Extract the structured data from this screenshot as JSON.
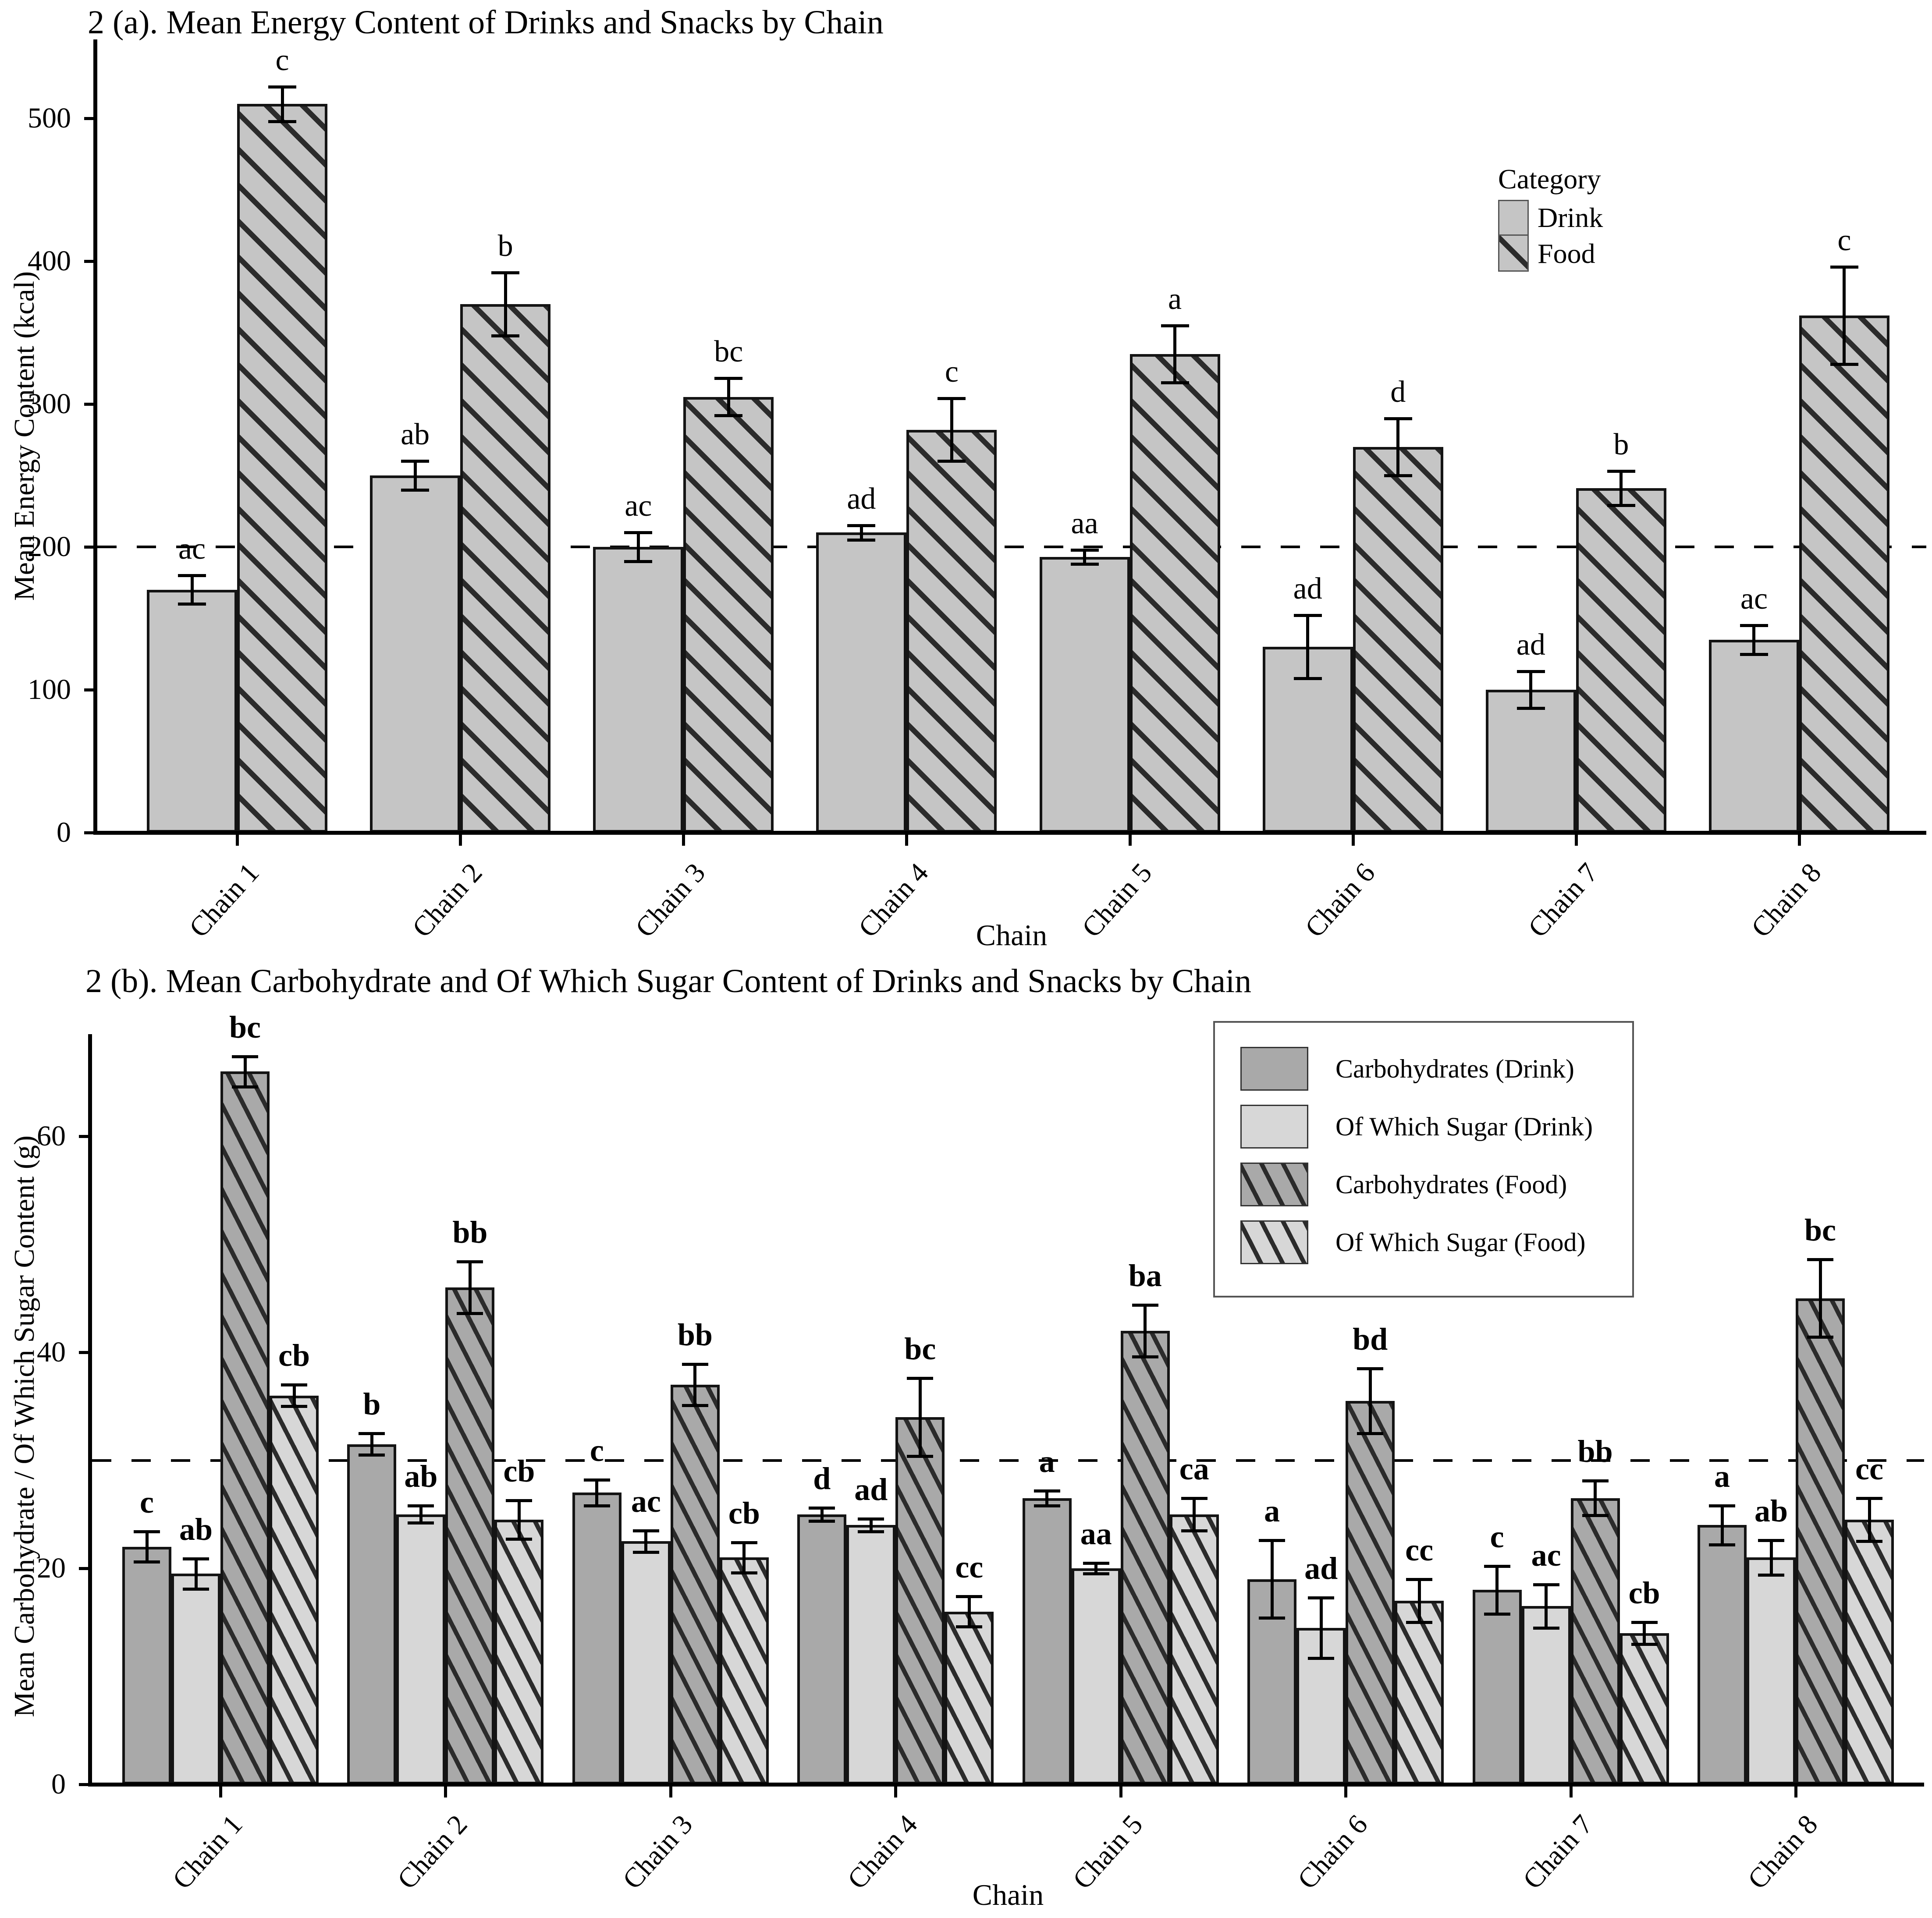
{
  "colors": {
    "background": "#ffffff",
    "bar_gray": "#c5c5c5",
    "bar_dark_gray": "#a9a9a9",
    "bar_light_gray": "#d7d7d7",
    "hatch_line": "#2b2b2b",
    "axis": "#000000"
  },
  "chart_data": [
    {
      "id": "a",
      "type": "bar",
      "title": "2 (a). Mean Energy Content of Drinks and Snacks by Chain",
      "xlabel": "Chain",
      "ylabel": "Mean Energy Content (kcal)",
      "categories": [
        "Chain 1",
        "Chain 2",
        "Chain 3",
        "Chain 4",
        "Chain 5",
        "Chain 6",
        "Chain 7",
        "Chain 8"
      ],
      "ytick_labels": [
        "0",
        "100",
        "200",
        "300",
        "400",
        "500"
      ],
      "ytick_values": [
        0,
        100,
        200,
        300,
        400,
        500
      ],
      "ylim": [
        0,
        555
      ],
      "grid": false,
      "refline_value": 200,
      "legend": {
        "position": "upper-right",
        "title": "Category",
        "entries": [
          {
            "label": "Drink",
            "style": "drink-a"
          },
          {
            "label": "Food",
            "style": "food-a"
          }
        ]
      },
      "series": [
        {
          "name": "Drink",
          "style": "drink-a",
          "values": [
            170,
            250,
            200,
            210,
            193,
            130,
            100,
            135
          ],
          "errors": [
            10,
            10,
            10,
            5,
            5,
            22,
            13,
            10
          ],
          "sig_labels": [
            "ac",
            "ab",
            "ac",
            "ad",
            "aa",
            "ad",
            "ad",
            "ac"
          ]
        },
        {
          "name": "Food",
          "style": "food-a",
          "values": [
            510,
            370,
            305,
            282,
            335,
            270,
            241,
            362
          ],
          "errors": [
            12,
            22,
            13,
            22,
            20,
            20,
            12,
            34
          ],
          "sig_labels": [
            "c",
            "b",
            "bc",
            "c",
            "a",
            "d",
            "b",
            "c"
          ]
        }
      ]
    },
    {
      "id": "b",
      "type": "bar",
      "title": "2 (b). Mean Carbohydrate and Of Which Sugar Content of Drinks and Snacks by Chain",
      "xlabel": "Chain",
      "ylabel": "Mean Carbohydrate / Of Which Sugar Content (g)",
      "categories": [
        "Chain 1",
        "Chain 2",
        "Chain 3",
        "Chain 4",
        "Chain 5",
        "Chain 6",
        "Chain 7",
        "Chain 8"
      ],
      "ytick_labels": [
        "0",
        "20",
        "40",
        "60"
      ],
      "ytick_values": [
        0,
        20,
        40,
        60
      ],
      "ylim": [
        0,
        69.5
      ],
      "grid": false,
      "refline_value": 30,
      "legend": {
        "position": "upper-right",
        "title": "",
        "entries": [
          {
            "label": "Carbohydrates (Drink)",
            "style": "carb-drink"
          },
          {
            "label": "Of Which Sugar (Drink)",
            "style": "sugar-drink"
          },
          {
            "label": "Carbohydrates (Food)",
            "style": "carb-food"
          },
          {
            "label": "Of Which Sugar (Food)",
            "style": "sugar-food"
          }
        ]
      },
      "series": [
        {
          "name": "Carbohydrates (Drink)",
          "style": "carb-drink",
          "values": [
            22,
            31.5,
            27,
            25,
            26.5,
            19,
            18,
            24
          ],
          "errors": [
            1.4,
            1,
            1.2,
            0.6,
            0.7,
            3.6,
            2.2,
            1.8
          ],
          "sig_labels": [
            "c",
            "b",
            "c",
            "d",
            "a",
            "a",
            "c",
            "a"
          ]
        },
        {
          "name": "Of Which Sugar (Drink)",
          "style": "sugar-drink",
          "values": [
            19.5,
            25,
            22.5,
            24,
            20,
            14.5,
            16.5,
            21
          ],
          "errors": [
            1.4,
            0.8,
            1,
            0.6,
            0.5,
            2.8,
            2,
            1.6
          ],
          "sig_labels": [
            "ab",
            "ab",
            "ac",
            "ad",
            "aa",
            "ad",
            "ac",
            "ab"
          ]
        },
        {
          "name": "Carbohydrates (Food)",
          "style": "carb-food",
          "values": [
            66,
            46,
            37,
            34,
            42,
            35.5,
            26.5,
            45
          ],
          "errors": [
            1.4,
            2.4,
            1.9,
            3.6,
            2.4,
            3,
            1.6,
            3.6
          ],
          "sig_labels": [
            "bc",
            "bb",
            "bb",
            "bc",
            "ba",
            "bd",
            "bb",
            "bc"
          ]
        },
        {
          "name": "Of Which Sugar (Food)",
          "style": "sugar-food",
          "values": [
            36,
            24.5,
            21,
            16,
            25,
            17,
            14,
            24.5
          ],
          "errors": [
            1,
            1.8,
            1.4,
            1.4,
            1.5,
            2,
            1,
            2
          ],
          "sig_labels": [
            "cb",
            "cb",
            "cb",
            "cc",
            "ca",
            "cc",
            "cb",
            "cc"
          ]
        }
      ]
    }
  ]
}
